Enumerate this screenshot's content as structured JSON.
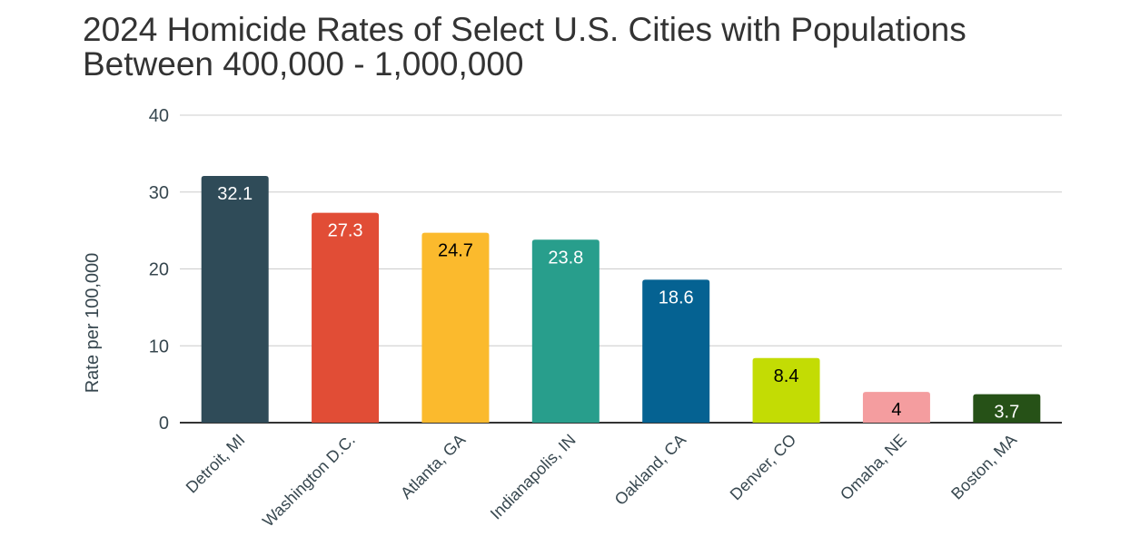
{
  "chart_data": {
    "type": "bar",
    "title_lines": [
      "2024 Homicide Rates of Select U.S. Cities with Populations",
      "Between 400,000 - 1,000,000"
    ],
    "xlabel": "",
    "ylabel": "Rate per 100,000",
    "ylim": [
      0,
      40
    ],
    "yticks": [
      "0",
      "10",
      "20",
      "30",
      "40"
    ],
    "grid": true,
    "legend": "none",
    "categories": [
      "Detroit, MI",
      "Washington D.C.",
      "Atlanta, GA",
      "Indianapolis, IN",
      "Oakland, CA",
      "Denver, CO",
      "Omaha, NE",
      "Boston, MA"
    ],
    "values": [
      32.1,
      27.3,
      24.7,
      23.8,
      18.6,
      8.4,
      4,
      3.7
    ],
    "value_labels": [
      "32.1",
      "27.3",
      "24.7",
      "23.8",
      "18.6",
      "8.4",
      "4",
      "3.7"
    ],
    "colors": [
      "#2f4b58",
      "#e14d36",
      "#fbba2d",
      "#289e8c",
      "#056292",
      "#c3dc04",
      "#f49d9f",
      "#265117"
    ],
    "label_colors": [
      "#ffffff",
      "#ffffff",
      "#000000",
      "#ffffff",
      "#ffffff",
      "#000000",
      "#000000",
      "#ffffff"
    ]
  }
}
